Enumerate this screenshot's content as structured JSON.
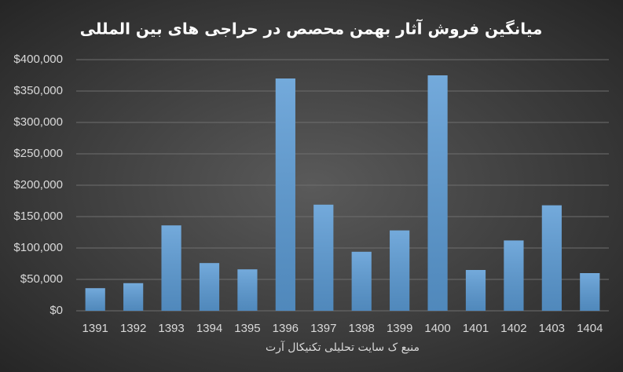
{
  "chart_data": {
    "type": "bar",
    "title": "میانگین فروش آثار بهمن محصص در حراجی های بین المللی",
    "x_label": "منبع ک سایت تحلیلی تکنیکال آرت",
    "categories": [
      "1391",
      "1392",
      "1393",
      "1394",
      "1395",
      "1396",
      "1397",
      "1398",
      "1399",
      "1400",
      "1401",
      "1402",
      "1403",
      "1404"
    ],
    "values": [
      36000,
      44000,
      136000,
      76000,
      66000,
      370000,
      169000,
      94000,
      128000,
      375000,
      65000,
      112000,
      168000,
      60000
    ],
    "color": "#5b9bd5",
    "ylim": [
      0,
      400000
    ],
    "yticks": [
      {
        "value": 0,
        "label": "$0"
      },
      {
        "value": 50000,
        "label": "$50,000"
      },
      {
        "value": 100000,
        "label": "$100,000"
      },
      {
        "value": 150000,
        "label": "$150,000"
      },
      {
        "value": 200000,
        "label": "$200,000"
      },
      {
        "value": 250000,
        "label": "$250,000"
      },
      {
        "value": 300000,
        "label": "$300,000"
      },
      {
        "value": 350000,
        "label": "$350,000"
      },
      {
        "value": 400000,
        "label": "$400,000"
      }
    ],
    "grid": true
  }
}
